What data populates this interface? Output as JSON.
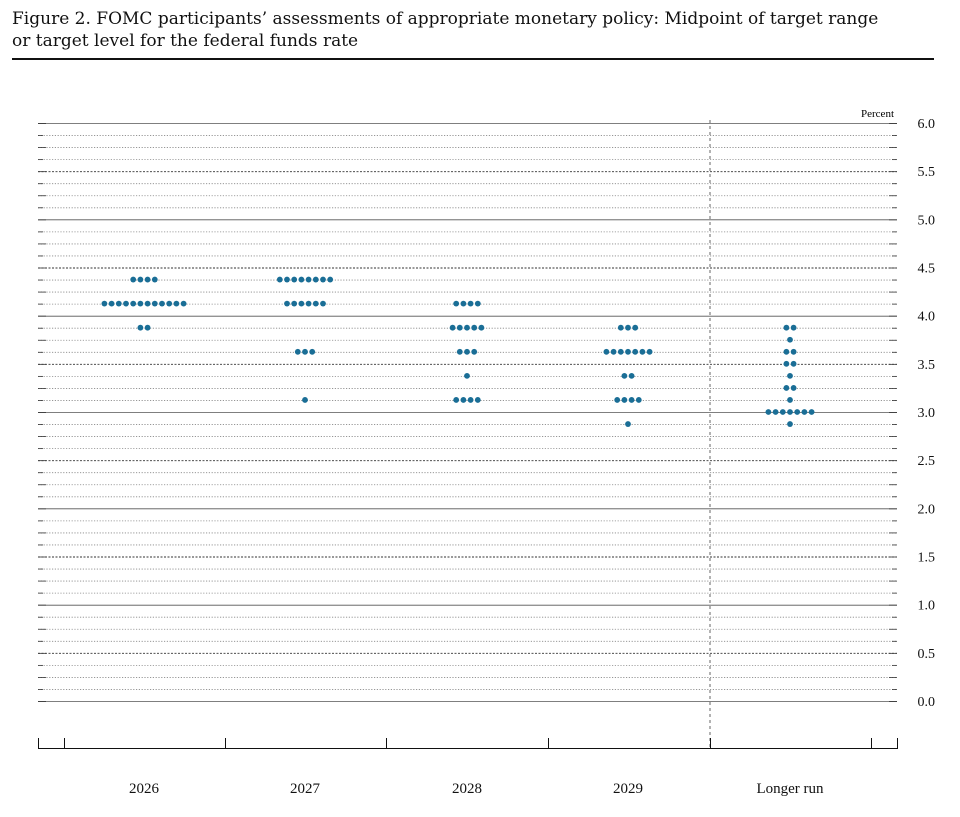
{
  "figure": {
    "title_line1": "Figure 2. FOMC participants’ assessments of appropriate monetary policy: Midpoint of target range",
    "title_line2": "or target level for the federal funds rate"
  },
  "chart_data": {
    "type": "scatter",
    "subtype": "dot-plot",
    "title": "FOMC participants’ assessments of appropriate monetary policy: Midpoint of target range or target level for the federal funds rate",
    "ylabel": "Percent",
    "ylim": [
      0.0,
      6.0
    ],
    "yticks": [
      "0.0",
      "0.5",
      "1.0",
      "1.5",
      "2.0",
      "2.5",
      "3.0",
      "3.5",
      "4.0",
      "4.5",
      "5.0",
      "5.5",
      "6.0"
    ],
    "categories": [
      "2026",
      "2027",
      "2028",
      "2029",
      "Longer run"
    ],
    "dot_color": "#1a6e96",
    "grid": true,
    "columns": [
      {
        "category": "2026",
        "points": [
          {
            "rate": 4.375,
            "count": 4
          },
          {
            "rate": 4.125,
            "count": 12
          },
          {
            "rate": 3.875,
            "count": 2
          }
        ]
      },
      {
        "category": "2027",
        "points": [
          {
            "rate": 4.375,
            "count": 8
          },
          {
            "rate": 4.125,
            "count": 6
          },
          {
            "rate": 3.625,
            "count": 3
          },
          {
            "rate": 3.125,
            "count": 1
          }
        ]
      },
      {
        "category": "2028",
        "points": [
          {
            "rate": 4.125,
            "count": 4
          },
          {
            "rate": 3.875,
            "count": 5
          },
          {
            "rate": 3.625,
            "count": 3
          },
          {
            "rate": 3.375,
            "count": 1
          },
          {
            "rate": 3.125,
            "count": 4
          }
        ]
      },
      {
        "category": "2029",
        "points": [
          {
            "rate": 3.875,
            "count": 3
          },
          {
            "rate": 3.625,
            "count": 7
          },
          {
            "rate": 3.375,
            "count": 2
          },
          {
            "rate": 3.125,
            "count": 4
          },
          {
            "rate": 2.875,
            "count": 1
          }
        ]
      },
      {
        "category": "Longer run",
        "points": [
          {
            "rate": 3.875,
            "count": 2
          },
          {
            "rate": 3.75,
            "count": 1
          },
          {
            "rate": 3.625,
            "count": 2
          },
          {
            "rate": 3.5,
            "count": 2
          },
          {
            "rate": 3.375,
            "count": 1
          },
          {
            "rate": 3.25,
            "count": 2
          },
          {
            "rate": 3.125,
            "count": 1
          },
          {
            "rate": 3.0,
            "count": 7
          },
          {
            "rate": 2.875,
            "count": 1
          }
        ]
      }
    ]
  }
}
